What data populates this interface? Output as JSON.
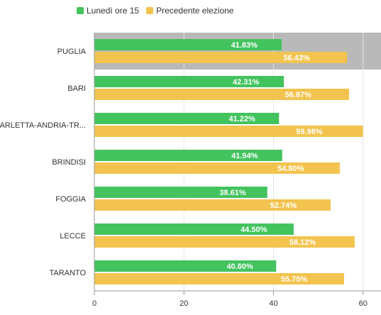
{
  "legend": {
    "series_1": "Lunedì ore 15",
    "series_2": "Precedente elezione"
  },
  "colors": {
    "series_1": "#43c35e",
    "series_2": "#f2c44f",
    "highlight": "#b9b9b9",
    "axis": "#9a9a9a",
    "grid": "#e6e6e6"
  },
  "chart_data": {
    "type": "bar",
    "orientation": "horizontal",
    "categories": [
      "PUGLIA",
      "BARI",
      "BARLETTA-ANDRIA-TR...",
      "BRINDISI",
      "FOGGIA",
      "LECCE",
      "TARANTO"
    ],
    "series": [
      {
        "name": "Lunedì ore 15",
        "values": [
          41.83,
          42.31,
          41.22,
          41.94,
          38.61,
          44.5,
          40.6
        ]
      },
      {
        "name": "Precedente elezione",
        "values": [
          56.43,
          56.87,
          59.98,
          54.8,
          52.74,
          58.12,
          55.75
        ]
      }
    ],
    "data_labels": [
      [
        "41.83%",
        "42.31%",
        "41.22%",
        "41.94%",
        "38.61%",
        "44.50%",
        "40.60%"
      ],
      [
        "56.43%",
        "56.87%",
        "59.98%",
        "54.80%",
        "52.74%",
        "58.12%",
        "55.75%"
      ]
    ],
    "xticks": [
      "0",
      "20",
      "40",
      "60"
    ],
    "xlim": [
      0,
      64
    ],
    "highlighted_category": "PUGLIA",
    "legend_position": "top-left",
    "grid": true
  }
}
